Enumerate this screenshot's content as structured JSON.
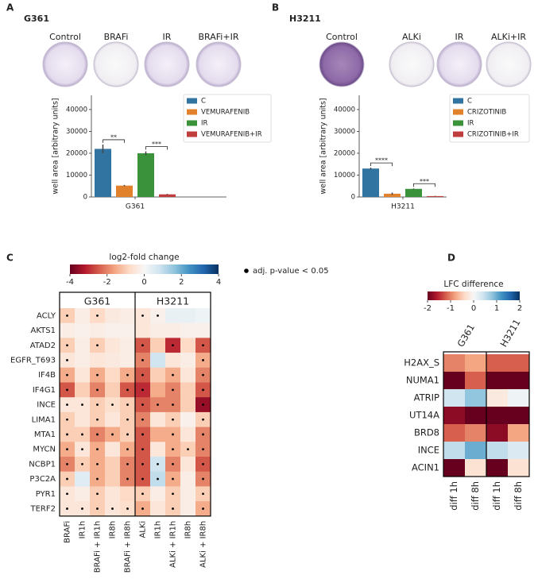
{
  "chart_data": [
    {
      "type": "bar",
      "panel": "A",
      "title": "G361",
      "plate_labels": [
        "Control",
        "BRAFi",
        "IR",
        "BRAFi+IR"
      ],
      "ylabel": "well area [arbitrary units]",
      "categories": [
        "G361"
      ],
      "series": [
        {
          "name": "C",
          "color": "#3274a1",
          "values": [
            22000
          ],
          "errors": [
            2000
          ]
        },
        {
          "name": "VEMURAFENIB",
          "color": "#e1812c",
          "values": [
            5200
          ],
          "errors": [
            300
          ]
        },
        {
          "name": "IR",
          "color": "#3a923a",
          "values": [
            20000
          ],
          "errors": [
            900
          ]
        },
        {
          "name": "VEMURAFENIB+IR",
          "color": "#c03d3e",
          "values": [
            1200
          ],
          "errors": [
            200
          ]
        }
      ],
      "annotations": [
        {
          "text": "**",
          "between": [
            "C",
            "VEMURAFENIB"
          ]
        },
        {
          "text": "***",
          "between": [
            "IR",
            "VEMURAFENIB+IR"
          ]
        }
      ],
      "ylim": [
        0,
        46500
      ],
      "yticks": [
        0,
        10000,
        20000,
        30000,
        40000
      ],
      "legend": "upper right"
    },
    {
      "type": "bar",
      "panel": "B",
      "title": "H3211",
      "plate_labels": [
        "Control",
        "ALKi",
        "IR",
        "ALKi+IR"
      ],
      "ylabel": "well area [arbitrary units]",
      "categories": [
        "H3211"
      ],
      "series": [
        {
          "name": "C",
          "color": "#3274a1",
          "values": [
            13000
          ],
          "errors": [
            400
          ]
        },
        {
          "name": "CRIZOTINIB",
          "color": "#e1812c",
          "values": [
            1500
          ],
          "errors": [
            500
          ]
        },
        {
          "name": "IR",
          "color": "#3a923a",
          "values": [
            3700
          ],
          "errors": [
            200
          ]
        },
        {
          "name": "CRIZOTINIB+IR",
          "color": "#c03d3e",
          "values": [
            400
          ],
          "errors": [
            100
          ]
        }
      ],
      "annotations": [
        {
          "text": "****",
          "between": [
            "C",
            "CRIZOTINIB"
          ]
        },
        {
          "text": "***",
          "between": [
            "IR",
            "CRIZOTINIB+IR"
          ]
        }
      ],
      "ylim": [
        0,
        46500
      ],
      "yticks": [
        0,
        10000,
        20000,
        30000,
        40000
      ],
      "legend": "upper right"
    },
    {
      "type": "heatmap",
      "panel": "C",
      "colorbar_title": "log2-fold change",
      "vlim": [
        -4,
        4
      ],
      "cbar_ticks": [
        -4,
        -2,
        0,
        2,
        4
      ],
      "colors": [
        "#67001f",
        "#b2182b",
        "#d6604d",
        "#f4a582",
        "#fddbc7",
        "#f7f7f7",
        "#d1e5f0",
        "#92c5de",
        "#4393c3",
        "#2166ac",
        "#053061"
      ],
      "significance_label": "adj. p-value < 0.05",
      "groups": [
        "G361",
        "H3211"
      ],
      "rows": [
        "ACLY",
        "AKTS1",
        "ATAD2",
        "EGFR_T693",
        "IF4B",
        "IF4G1",
        "INCE",
        "LIMA1",
        "MTA1",
        "MYCN",
        "NCBP1",
        "P3C2A",
        "PYR1",
        "TERF2"
      ],
      "columns": [
        "BRAFi",
        "IR1h",
        "BRAFi + IR1h",
        "IR8h",
        "BRAFi + IR8h",
        "ALKi",
        "IR1h",
        "ALKi + IR1h",
        "IR8h",
        "ALKi + IR8h"
      ],
      "values": [
        [
          -1,
          -0.3,
          -0.8,
          -0.4,
          -0.3,
          -0.5,
          -0.2,
          0.3,
          0.3,
          0.2
        ],
        [
          -0.3,
          -0.2,
          -0.3,
          -0.2,
          -0.2,
          -0.5,
          -0.3,
          -0.3,
          -0.2,
          -0.2
        ],
        [
          -1,
          -0.3,
          -1,
          -0.5,
          -0.3,
          -2.5,
          -1,
          -3,
          -0.8,
          -2.5
        ],
        [
          -0.5,
          -0.3,
          -0.5,
          -0.4,
          -0.3,
          -2,
          0.8,
          -0.5,
          -0.3,
          -1.5
        ],
        [
          -1.5,
          -0.5,
          -1.5,
          -0.8,
          -1.5,
          -2.5,
          -1,
          -1.5,
          -0.5,
          -2
        ],
        [
          -2.5,
          -1,
          -2,
          -1,
          -2.5,
          -3,
          -1.5,
          -2,
          -1,
          -2.5
        ],
        [
          -0.5,
          -0.5,
          -1,
          -0.7,
          -1,
          -2.5,
          -2,
          -2,
          -1,
          -3.5
        ],
        [
          -1,
          -0.5,
          -1,
          -0.5,
          -1,
          -2,
          -0.5,
          -1,
          -0.2,
          -1
        ],
        [
          -1,
          -1,
          -2,
          -1.5,
          -1,
          -2.5,
          -1.5,
          -1.5,
          -0.5,
          -2
        ],
        [
          -1.5,
          -0.5,
          -1.5,
          -0.5,
          -1.5,
          -2.5,
          -0.5,
          -1.5,
          -1,
          -2
        ],
        [
          -2,
          -1,
          -1.5,
          -1,
          -2,
          -2.5,
          0.8,
          -2,
          -0.5,
          -2.5
        ],
        [
          -1,
          0.5,
          -1.5,
          -1,
          -2,
          -2.5,
          1,
          -1.5,
          -0.3,
          -2
        ],
        [
          -0.5,
          -0.3,
          -1,
          -0.5,
          -0.8,
          -1,
          -0.3,
          -1,
          -0.3,
          -1
        ],
        [
          -0.5,
          -0.5,
          -1,
          -0.5,
          -0.7,
          -1.5,
          -0.5,
          -1,
          -0.3,
          -1.5
        ]
      ],
      "significant": [
        [
          1,
          0,
          1,
          0,
          0,
          1,
          1,
          0,
          0,
          0
        ],
        [
          0,
          0,
          0,
          0,
          0,
          0,
          0,
          0,
          0,
          0
        ],
        [
          1,
          0,
          1,
          0,
          0,
          1,
          0,
          1,
          0,
          1
        ],
        [
          1,
          0,
          0,
          0,
          0,
          1,
          0,
          0,
          0,
          1
        ],
        [
          1,
          0,
          1,
          0,
          1,
          1,
          0,
          1,
          0,
          1
        ],
        [
          1,
          0,
          1,
          0,
          1,
          1,
          0,
          1,
          0,
          1
        ],
        [
          1,
          1,
          1,
          1,
          1,
          1,
          1,
          1,
          0,
          1
        ],
        [
          1,
          0,
          1,
          0,
          1,
          1,
          0,
          1,
          0,
          1
        ],
        [
          1,
          1,
          1,
          1,
          1,
          1,
          0,
          1,
          0,
          1
        ],
        [
          1,
          1,
          1,
          0,
          1,
          1,
          0,
          1,
          1,
          1
        ],
        [
          1,
          1,
          1,
          0,
          1,
          1,
          1,
          1,
          0,
          1
        ],
        [
          1,
          0,
          1,
          0,
          1,
          1,
          1,
          1,
          0,
          1
        ],
        [
          1,
          0,
          1,
          0,
          0,
          1,
          0,
          1,
          0,
          1
        ],
        [
          1,
          1,
          1,
          1,
          1,
          1,
          0,
          1,
          0,
          1
        ]
      ]
    },
    {
      "type": "heatmap",
      "panel": "D",
      "colorbar_title": "LFC difference",
      "vlim": [
        -2,
        2
      ],
      "cbar_ticks": [
        -2,
        -1,
        0,
        1,
        2
      ],
      "colors": [
        "#67001f",
        "#b2182b",
        "#d6604d",
        "#f4a582",
        "#fddbc7",
        "#f7f7f7",
        "#d1e5f0",
        "#92c5de",
        "#4393c3",
        "#2166ac",
        "#053061"
      ],
      "groups": [
        "G361",
        "H3211"
      ],
      "rows": [
        "H2AX_S",
        "NUMA1",
        "ATRIP",
        "UT14A",
        "BRD8",
        "INCE",
        "ACIN1"
      ],
      "columns": [
        "diff 1h",
        "diff 8h",
        "diff 1h",
        "diff 8h"
      ],
      "values": [
        [
          -1,
          -0.8,
          -1.2,
          -1.2
        ],
        [
          -2,
          -1.2,
          -2,
          -2
        ],
        [
          0.4,
          0.8,
          -0.2,
          0.1
        ],
        [
          -1.8,
          -2,
          -2,
          -2
        ],
        [
          -1.2,
          -1,
          -1.8,
          -0.8
        ],
        [
          0.5,
          1,
          0.5,
          0.3
        ],
        [
          -2,
          -0.3,
          -2,
          -0.3
        ]
      ]
    }
  ]
}
